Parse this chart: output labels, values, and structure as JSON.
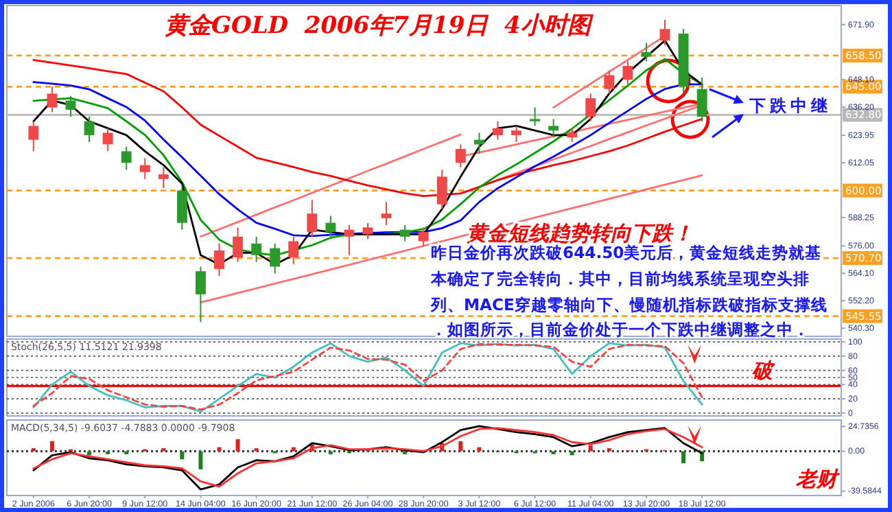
{
  "chart_data": [
    {
      "type": "candlestick",
      "title": "黄金GOLD  2006年7月19日  4小时图",
      "categories": [
        null,
        null,
        null,
        null,
        null,
        null,
        null,
        null,
        null,
        null,
        null,
        null,
        null,
        null,
        null,
        null,
        null,
        null,
        null,
        null,
        null,
        null,
        null,
        null,
        null,
        null,
        null,
        null,
        null,
        null,
        null,
        null,
        null,
        null,
        null,
        null,
        null
      ],
      "ohlc": [
        [
          622,
          630,
          617,
          628
        ],
        [
          636,
          645,
          634,
          642
        ],
        [
          639,
          641,
          632,
          635
        ],
        [
          630,
          632,
          621,
          624
        ],
        [
          620,
          627,
          617,
          625
        ],
        [
          617,
          619,
          609,
          612
        ],
        [
          608,
          614,
          605,
          611
        ],
        [
          605,
          610,
          601,
          607
        ],
        [
          600,
          602,
          583,
          586
        ],
        [
          565,
          567,
          543,
          555
        ],
        [
          566,
          577,
          563,
          574
        ],
        [
          571,
          584,
          569,
          580
        ],
        [
          577,
          580,
          569,
          572
        ],
        [
          575,
          577,
          564,
          567
        ],
        [
          571,
          580,
          568,
          578
        ],
        [
          582,
          596,
          580,
          590
        ],
        [
          586,
          589,
          579,
          582
        ],
        [
          580,
          585,
          572,
          583
        ],
        [
          581,
          586,
          579,
          584
        ],
        [
          588,
          595,
          585,
          590
        ],
        [
          583,
          585,
          578,
          580
        ],
        [
          578,
          584,
          576,
          582
        ],
        [
          594,
          609,
          592,
          606
        ],
        [
          612,
          620,
          610,
          618
        ],
        [
          622,
          625,
          616,
          620
        ],
        [
          624,
          630,
          622,
          627
        ],
        [
          624,
          628,
          621,
          626
        ],
        [
          631,
          636,
          628,
          630
        ],
        [
          628,
          631,
          623,
          626
        ],
        [
          623,
          627,
          621,
          625
        ],
        [
          632,
          642,
          630,
          640
        ],
        [
          644,
          652,
          642,
          650
        ],
        [
          648,
          656,
          646,
          654
        ],
        [
          660,
          664,
          656,
          658
        ],
        [
          665,
          674,
          663,
          670
        ],
        [
          668,
          670,
          642,
          645
        ],
        [
          644,
          649,
          630,
          632
        ]
      ],
      "colors": [
        "#f04848",
        "#f04848",
        "#2a9a2a",
        "#2a9a2a",
        "#f04848",
        "#2a9a2a",
        "#f04848",
        "#f04848",
        "#2a9a2a",
        "#2a9a2a",
        "#f04848",
        "#f04848",
        "#2a9a2a",
        "#2a9a2a",
        "#f04848",
        "#f04848",
        "#2a9a2a",
        "#f04848",
        "#f04848",
        "#f04848",
        "#2a9a2a",
        "#f04848",
        "#f04848",
        "#f04848",
        "#2a9a2a",
        "#f04848",
        "#f04848",
        "#2a9a2a",
        "#2a9a2a",
        "#f04848",
        "#f04848",
        "#f04848",
        "#f04848",
        "#2a9a2a",
        "#f04848",
        "#2a9a2a",
        "#2a9a2a"
      ],
      "series": [
        {
          "type": "line",
          "color": "#ff7070",
          "values": [
            null,
            null,
            null,
            null,
            null,
            null,
            null,
            null,
            null,
            551.5,
            553.5,
            555.6,
            557.6,
            559.7,
            561.7,
            563.7,
            565.8,
            567.8,
            569.9,
            571.9,
            573.9,
            576.0,
            578.0,
            580.1,
            582.1,
            584.2,
            586.2,
            588.2,
            590.3,
            592.3,
            594.3,
            596.4,
            598.4,
            600.5,
            602.5,
            604.5,
            606.6
          ]
        },
        {
          "type": "line",
          "color": "#ff7070",
          "values": [
            null,
            null,
            null,
            null,
            null,
            null,
            null,
            null,
            null,
            580,
            583.2,
            586.3,
            589.5,
            592.7,
            595.8,
            599,
            602.1,
            605.3,
            608.5,
            611.6,
            614.8,
            618,
            621.1,
            624.3,
            null,
            null,
            null,
            null,
            null,
            null,
            null,
            null,
            null,
            null,
            null,
            null,
            null
          ]
        },
        {
          "type": "line",
          "color": "#ff7070",
          "values": [
            null,
            null,
            null,
            null,
            null,
            null,
            null,
            null,
            null,
            null,
            null,
            null,
            null,
            null,
            null,
            null,
            null,
            null,
            null,
            null,
            null,
            null,
            null,
            598.7,
            601.6,
            604.6,
            607.5,
            610.5,
            613.4,
            616.4,
            619.3,
            622.3,
            625.2,
            628.2,
            631.1,
            634.1,
            637
          ]
        },
        {
          "type": "line",
          "color": "#ff7070",
          "values": [
            null,
            null,
            null,
            null,
            null,
            null,
            null,
            null,
            null,
            null,
            null,
            null,
            null,
            null,
            null,
            null,
            null,
            null,
            null,
            null,
            null,
            null,
            null,
            614.7,
            616.5,
            618.2,
            620,
            621.8,
            623.5,
            625.3,
            627.1,
            628.9,
            630.6,
            632.4,
            634.2,
            635.9,
            637.7
          ]
        },
        {
          "type": "line",
          "color": "#ff7070",
          "values": [
            null,
            null,
            null,
            null,
            null,
            null,
            null,
            null,
            null,
            null,
            null,
            null,
            null,
            null,
            null,
            null,
            null,
            null,
            null,
            null,
            null,
            null,
            null,
            null,
            null,
            null,
            null,
            null,
            636,
            641.2,
            646.3,
            651.5,
            656.6,
            661.8,
            667,
            null,
            null
          ]
        },
        {
          "type": "line",
          "color": "#ff0000",
          "values": [
            656.6,
            655.4,
            654.2,
            653,
            651.7,
            650.5,
            646.7,
            643,
            636,
            628.5,
            623.7,
            619,
            614.2,
            612.2,
            610.2,
            608,
            606.3,
            604.2,
            602.2,
            600.5,
            598.8,
            597.6,
            598.1,
            598.7,
            601.5,
            604.5,
            606.9,
            609,
            611,
            612.8,
            614.9,
            617,
            619.5,
            622.5,
            625.5,
            628.3,
            631
          ]
        },
        {
          "type": "line",
          "color": "#0000ff",
          "values": [
            647,
            646.3,
            645.5,
            643.9,
            640,
            636.2,
            630.3,
            622.1,
            614.4,
            606.4,
            598.4,
            591.8,
            586,
            583.4,
            580.6,
            580.3,
            580.8,
            581.2,
            581.5,
            581.9,
            582,
            582,
            583.7,
            587,
            595,
            601,
            605.7,
            610.5,
            614.7,
            619.3,
            624,
            629.3,
            634.5,
            639.7,
            644,
            646,
            646
          ]
        },
        {
          "type": "line",
          "color": "#00a000",
          "values": [
            638.9,
            639.5,
            640,
            637.9,
            635.7,
            630,
            624.1,
            615.3,
            603.6,
            587.3,
            578.7,
            574.5,
            572.9,
            571.9,
            574.1,
            576.3,
            579.5,
            581,
            581,
            581,
            581.9,
            583.3,
            587.4,
            594.1,
            601.3,
            606.7,
            611.3,
            616.3,
            621.3,
            626.8,
            633,
            639.2,
            645.4,
            652.1,
            657,
            650.8,
            646
          ]
        },
        {
          "type": "line",
          "color": "#000000",
          "values": [
            630,
            639,
            637,
            630,
            627,
            624,
            617,
            611,
            603,
            572,
            568,
            573,
            573,
            568,
            572,
            583,
            582,
            581,
            581,
            581,
            581,
            581,
            592,
            606,
            619,
            627,
            628,
            626,
            624,
            624,
            631,
            642,
            651,
            658,
            665,
            652,
            646
          ]
        }
      ],
      "ylim": [
        536.8,
        680.2
      ],
      "yticks": [
        {
          "value": 671.9,
          "label": "671.90"
        },
        {
          "value": 648.1,
          "label": "648.10"
        },
        {
          "value": 636.2,
          "label": "636.20"
        },
        {
          "value": 623.95,
          "label": "623.95"
        },
        {
          "value": 612.05,
          "label": "612.05"
        },
        {
          "value": 588.25,
          "label": "588.25"
        },
        {
          "value": 576,
          "label": "576.00"
        },
        {
          "value": 564.1,
          "label": "564.10"
        },
        {
          "value": 552.2,
          "label": "552.20"
        },
        {
          "value": 540.3,
          "label": "540.30"
        }
      ],
      "ref_lines": [
        {
          "axis": "y",
          "value": 658.5,
          "label": "658.50",
          "color": "#ffa020",
          "line_style": "dashed"
        },
        {
          "axis": "y",
          "value": 645,
          "label": "645.00",
          "color": "#ffa020",
          "line_style": "dashed"
        },
        {
          "axis": "y",
          "value": 600,
          "label": "600.00",
          "color": "#ffa020",
          "line_style": "dashed"
        },
        {
          "axis": "y",
          "value": 570.7,
          "label": "570.70",
          "color": "#ffa020",
          "line_style": "dashed"
        },
        {
          "axis": "y",
          "value": 545.55,
          "label": "545.55",
          "color": "#ffa020",
          "line_style": "dashed"
        },
        {
          "axis": "y",
          "value": 632.8,
          "label": "632.80",
          "color": "#b8b8b8",
          "line_style": "solid"
        }
      ],
      "annotations": [
        "黄金短线趋势转向下跌！",
        "昨日金价再次跌破644.50美元后，黄金短线走势就基",
        "本确定了完全转向．其中，目前均线系统呈现空头排",
        "列、MACE穿越零轴向下、慢随机指标跌破指标支撑线",
        "．如图所示，目前金价处于一个下跌中继调整之中．",
        "下跌中继"
      ],
      "tick_labels": "y"
    },
    {
      "type": "line",
      "title": "Stoch(26,5,5) 11.5121 21.9398",
      "categories": [
        null,
        null,
        null,
        null,
        null,
        null,
        null,
        null,
        null,
        null,
        null,
        null,
        null,
        null,
        null,
        null,
        null,
        null,
        null,
        null,
        null,
        null,
        null,
        null,
        null,
        null,
        null,
        null,
        null,
        null,
        null,
        null,
        null,
        null,
        null,
        null,
        null
      ],
      "series": [
        {
          "color": "#40c0c0",
          "values": [
            8,
            40,
            58,
            38,
            25,
            18,
            8,
            10,
            10,
            2,
            20,
            38,
            55,
            50,
            65,
            85,
            98,
            80,
            72,
            78,
            60,
            38,
            85,
            98,
            95,
            97,
            95,
            96,
            90,
            55,
            80,
            98,
            95,
            96,
            92,
            45,
            12
          ]
        },
        {
          "color": "#ff4040",
          "line_style": "dashed",
          "values": [
            10,
            28,
            52,
            48,
            32,
            22,
            12,
            9,
            10,
            5,
            12,
            28,
            46,
            52,
            58,
            75,
            92,
            88,
            76,
            75,
            68,
            45,
            60,
            90,
            97,
            96,
            96,
            95,
            93,
            72,
            65,
            90,
            96,
            95,
            94,
            70,
            22
          ]
        }
      ],
      "ylim": [
        -4,
        104
      ],
      "yticks": [
        0,
        20,
        40,
        50,
        60,
        80,
        100
      ],
      "grid": "y",
      "ref_lines": [
        {
          "axis": "y",
          "value": 38,
          "label": "破",
          "color": "#ff0000"
        }
      ],
      "tick_labels": "y"
    },
    {
      "type": "bar",
      "title": "MACD(5,34,5) -9.6037 -4.7883 0.0000 -9.7908",
      "categories": [
        "2 Jun 2006",
        null,
        null,
        "6 Jun 20:00",
        null,
        null,
        "9 Jun 12:00",
        null,
        null,
        "14 Jun 04:00",
        null,
        null,
        "16 Jun 20:00",
        null,
        null,
        "21 Jun 12:00",
        null,
        null,
        "26 Jun 04:00",
        null,
        null,
        "28 Jun 20:00",
        null,
        null,
        "3 Jul 12:00",
        null,
        null,
        "6 Jul 12:00",
        null,
        null,
        "11 Jul 04:00",
        null,
        null,
        "13 Jul 20:00",
        null,
        null,
        "18 Jul 12:00"
      ],
      "series": [
        {
          "type": "bar",
          "values": [
            3,
            10,
            2,
            -4,
            -3,
            -3,
            2,
            3,
            -8,
            -18,
            4,
            12,
            3,
            -2,
            4,
            7,
            -3,
            -2,
            1,
            1,
            -3,
            -1,
            8,
            10,
            4,
            -1,
            -2,
            -2,
            -3,
            -4,
            6,
            3,
            1,
            2,
            1,
            -12,
            -10
          ],
          "colors": [
            "#e02020",
            "#e02020",
            "#e02020",
            "#208020",
            "#208020",
            "#208020",
            "#e02020",
            "#e02020",
            "#208020",
            "#208020",
            "#e02020",
            "#e02020",
            "#e02020",
            "#208020",
            "#e02020",
            "#e02020",
            "#208020",
            "#208020",
            "#e02020",
            "#e02020",
            "#208020",
            "#208020",
            "#e02020",
            "#e02020",
            "#e02020",
            "#208020",
            "#208020",
            "#208020",
            "#208020",
            "#208020",
            "#e02020",
            "#e02020",
            "#e02020",
            "#e02020",
            "#e02020",
            "#208020",
            "#208020"
          ]
        },
        {
          "type": "line",
          "color": "#000000",
          "values": [
            -19,
            -4,
            -1,
            -7,
            -9,
            -13,
            -15,
            -16,
            -19,
            -38,
            -33,
            -16,
            -9,
            -10,
            -5,
            8,
            5,
            1,
            2,
            4,
            1,
            -1,
            9,
            21,
            25,
            22,
            19,
            17,
            14,
            5,
            8,
            14,
            19,
            21,
            23,
            8,
            -2
          ]
        },
        {
          "type": "line",
          "color": "#ff3030",
          "values": [
            -17,
            -8,
            -2,
            -5,
            -8,
            -11,
            -14,
            -15,
            -17,
            -30,
            -35,
            -22,
            -12,
            -10,
            -7,
            3,
            6,
            2,
            2,
            3,
            2,
            0,
            5,
            15,
            22,
            23,
            21,
            19,
            16,
            9,
            7,
            11,
            17,
            20,
            22,
            14,
            4
          ]
        }
      ],
      "ylim": [
        -44,
        31
      ],
      "yticks": [
        {
          "value": 24.7356,
          "label": "24.7356"
        },
        {
          "value": 0,
          "label": "0.00"
        },
        {
          "value": -39.5844,
          "label": "-39.5844"
        }
      ],
      "ref_lines": [
        {
          "axis": "y",
          "value": 0,
          "color": "#404040",
          "line_style": "dotted"
        }
      ],
      "annotations": [
        "老财"
      ]
    }
  ]
}
